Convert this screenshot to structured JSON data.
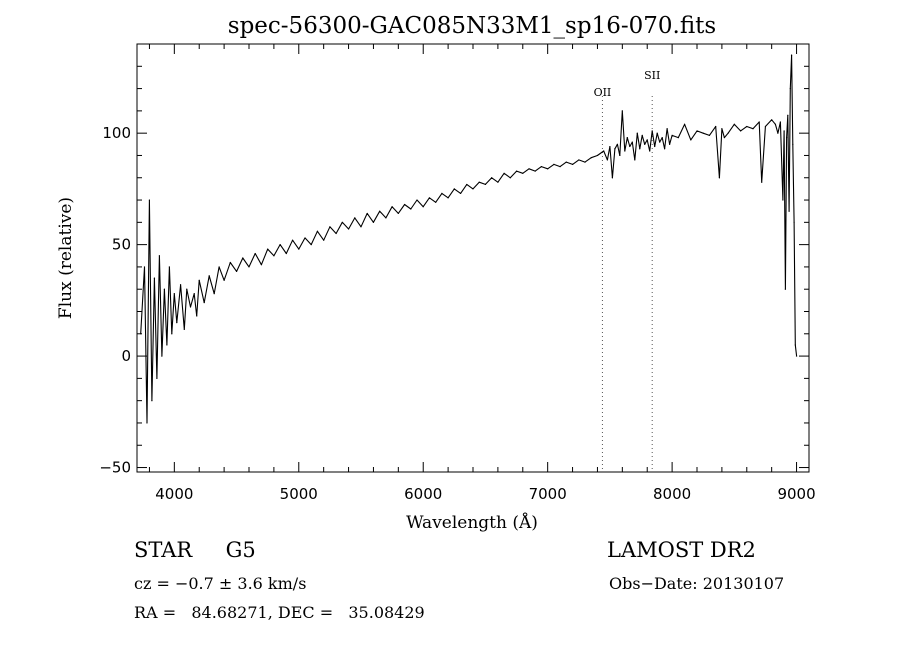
{
  "chart_data": {
    "type": "line",
    "title": "spec-56300-GAC085N33M1_sp16-070.fits",
    "xlabel": "Wavelength (Å)",
    "ylabel": "Flux (relative)",
    "xlim": [
      3700,
      9100
    ],
    "ylim": [
      -52,
      140
    ],
    "x_ticks": [
      4000,
      5000,
      6000,
      7000,
      8000,
      9000
    ],
    "x_tick_labels": [
      "4000",
      "5000",
      "6000",
      "7000",
      "8000",
      "9000"
    ],
    "y_ticks": [
      -50,
      0,
      50,
      100
    ],
    "y_tick_labels": [
      "−50",
      "0",
      "50",
      "100"
    ],
    "line_markers": [
      {
        "label": "OII",
        "x": 7440
      },
      {
        "label": "SII",
        "x": 7840
      }
    ],
    "series": [
      {
        "values_note": "",
        "x": [
          3730,
          3760,
          3780,
          3800,
          3820,
          3840,
          3860,
          3880,
          3900,
          3920,
          3940,
          3960,
          3980,
          4000,
          4020,
          4050,
          4080,
          4100,
          4130,
          4160,
          4180,
          4200,
          4240,
          4280,
          4320,
          4360,
          4400,
          4450,
          4500,
          4550,
          4600,
          4650,
          4700,
          4750,
          4800,
          4850,
          4900,
          4950,
          5000,
          5050,
          5100,
          5150,
          5200,
          5250,
          5300,
          5350,
          5400,
          5450,
          5500,
          5550,
          5600,
          5650,
          5700,
          5750,
          5800,
          5850,
          5900,
          5950,
          6000,
          6050,
          6100,
          6150,
          6200,
          6250,
          6300,
          6350,
          6400,
          6450,
          6500,
          6550,
          6600,
          6650,
          6700,
          6750,
          6800,
          6850,
          6900,
          6950,
          7000,
          7050,
          7100,
          7150,
          7200,
          7250,
          7300,
          7350,
          7400,
          7450,
          7480,
          7500,
          7520,
          7540,
          7560,
          7580,
          7600,
          7620,
          7640,
          7660,
          7680,
          7700,
          7720,
          7740,
          7760,
          7780,
          7800,
          7820,
          7840,
          7860,
          7880,
          7900,
          7920,
          7940,
          7960,
          7980,
          8000,
          8050,
          8100,
          8150,
          8200,
          8250,
          8300,
          8350,
          8380,
          8400,
          8420,
          8450,
          8500,
          8550,
          8600,
          8650,
          8700,
          8720,
          8750,
          8800,
          8830,
          8850,
          8870,
          8890,
          8900,
          8910,
          8920,
          8930,
          8940,
          8950,
          8960,
          8970,
          8980,
          8990,
          9000
        ],
        "y": [
          10,
          40,
          -30,
          70,
          -20,
          35,
          -10,
          45,
          0,
          30,
          5,
          40,
          10,
          28,
          15,
          32,
          12,
          30,
          22,
          28,
          18,
          34,
          24,
          36,
          28,
          40,
          34,
          42,
          38,
          44,
          40,
          46,
          41,
          48,
          45,
          50,
          46,
          52,
          48,
          53,
          50,
          56,
          52,
          58,
          55,
          60,
          57,
          62,
          58,
          64,
          60,
          65,
          62,
          67,
          64,
          68,
          66,
          70,
          67,
          71,
          69,
          73,
          71,
          75,
          73,
          77,
          75,
          78,
          77,
          80,
          78,
          82,
          80,
          83,
          82,
          84,
          83,
          85,
          84,
          86,
          85,
          87,
          86,
          88,
          87,
          89,
          90,
          92,
          88,
          94,
          80,
          93,
          95,
          90,
          110,
          92,
          98,
          94,
          96,
          88,
          100,
          93,
          99,
          95,
          97,
          92,
          101,
          94,
          100,
          96,
          98,
          93,
          102,
          95,
          99,
          98,
          104,
          97,
          101,
          100,
          99,
          103,
          80,
          102,
          98,
          100,
          104,
          101,
          103,
          102,
          105,
          78,
          103,
          106,
          104,
          100,
          105,
          70,
          101,
          30,
          98,
          108,
          65,
          120,
          135,
          95,
          60,
          5,
          0
        ]
      }
    ]
  },
  "info": {
    "object_class": "STAR     G5",
    "survey": "LAMOST DR2",
    "cz": "cz = −0.7 ± 3.6 km/s",
    "obs_date": "Obs−Date: 20130107",
    "coords": "RA =   84.68271, DEC =   35.08429"
  }
}
